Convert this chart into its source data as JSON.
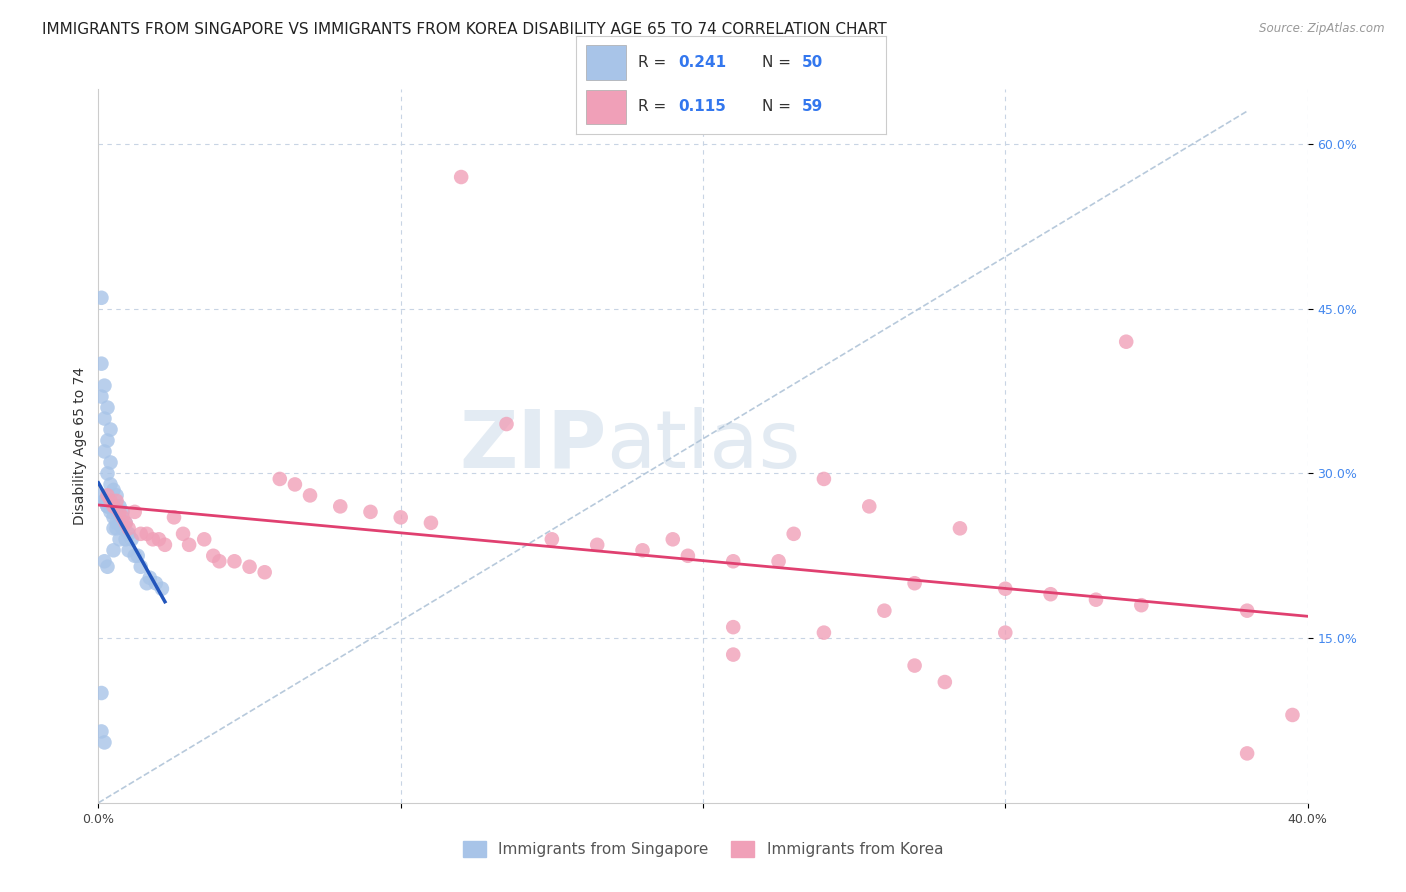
{
  "title": "IMMIGRANTS FROM SINGAPORE VS IMMIGRANTS FROM KOREA DISABILITY AGE 65 TO 74 CORRELATION CHART",
  "source": "Source: ZipAtlas.com",
  "ylabel": "Disability Age 65 to 74",
  "xlim": [
    0.0,
    0.4
  ],
  "ylim": [
    0.0,
    0.65
  ],
  "singapore_color": "#a8c4e8",
  "korea_color": "#f0a0b8",
  "singapore_line_color": "#2255bb",
  "korea_line_color": "#e04070",
  "dashed_line_color": "#b0c4d8",
  "watermark_zip": "ZIP",
  "watermark_atlas": "atlas",
  "legend_r1": "0.241",
  "legend_n1": "50",
  "legend_r2": "0.115",
  "legend_n2": "59",
  "background_color": "#ffffff",
  "grid_color": "#c8d4e4",
  "title_fontsize": 11,
  "axis_label_fontsize": 10,
  "tick_fontsize": 9,
  "sg_x": [
    0.001,
    0.001,
    0.001,
    0.001,
    0.002,
    0.002,
    0.002,
    0.002,
    0.003,
    0.003,
    0.003,
    0.003,
    0.004,
    0.004,
    0.004,
    0.004,
    0.005,
    0.005,
    0.005,
    0.005,
    0.006,
    0.006,
    0.006,
    0.007,
    0.007,
    0.007,
    0.008,
    0.008,
    0.009,
    0.009,
    0.01,
    0.01,
    0.011,
    0.012,
    0.013,
    0.014,
    0.016,
    0.017,
    0.019,
    0.021,
    0.001,
    0.002,
    0.003,
    0.004,
    0.005,
    0.006,
    0.002,
    0.003,
    0.001,
    0.002
  ],
  "sg_y": [
    0.46,
    0.4,
    0.37,
    0.1,
    0.38,
    0.35,
    0.32,
    0.275,
    0.36,
    0.33,
    0.3,
    0.27,
    0.34,
    0.31,
    0.29,
    0.27,
    0.285,
    0.27,
    0.25,
    0.23,
    0.28,
    0.265,
    0.25,
    0.27,
    0.255,
    0.24,
    0.265,
    0.25,
    0.255,
    0.24,
    0.245,
    0.23,
    0.24,
    0.225,
    0.225,
    0.215,
    0.2,
    0.205,
    0.2,
    0.195,
    0.28,
    0.275,
    0.27,
    0.265,
    0.26,
    0.255,
    0.22,
    0.215,
    0.065,
    0.055
  ],
  "kr_x": [
    0.003,
    0.004,
    0.005,
    0.006,
    0.007,
    0.008,
    0.009,
    0.01,
    0.012,
    0.014,
    0.016,
    0.018,
    0.02,
    0.022,
    0.025,
    0.028,
    0.03,
    0.035,
    0.038,
    0.04,
    0.045,
    0.05,
    0.055,
    0.06,
    0.065,
    0.07,
    0.08,
    0.09,
    0.1,
    0.11,
    0.12,
    0.135,
    0.15,
    0.165,
    0.18,
    0.195,
    0.21,
    0.225,
    0.24,
    0.255,
    0.27,
    0.285,
    0.3,
    0.315,
    0.33,
    0.345,
    0.21,
    0.27,
    0.34,
    0.38,
    0.21,
    0.26,
    0.28,
    0.38,
    0.395,
    0.24,
    0.3,
    0.23,
    0.19
  ],
  "kr_y": [
    0.28,
    0.275,
    0.27,
    0.275,
    0.265,
    0.26,
    0.255,
    0.25,
    0.265,
    0.245,
    0.245,
    0.24,
    0.24,
    0.235,
    0.26,
    0.245,
    0.235,
    0.24,
    0.225,
    0.22,
    0.22,
    0.215,
    0.21,
    0.295,
    0.29,
    0.28,
    0.27,
    0.265,
    0.26,
    0.255,
    0.57,
    0.345,
    0.24,
    0.235,
    0.23,
    0.225,
    0.22,
    0.22,
    0.295,
    0.27,
    0.2,
    0.25,
    0.195,
    0.19,
    0.185,
    0.18,
    0.135,
    0.125,
    0.42,
    0.175,
    0.16,
    0.175,
    0.11,
    0.045,
    0.08,
    0.155,
    0.155,
    0.245,
    0.24
  ]
}
